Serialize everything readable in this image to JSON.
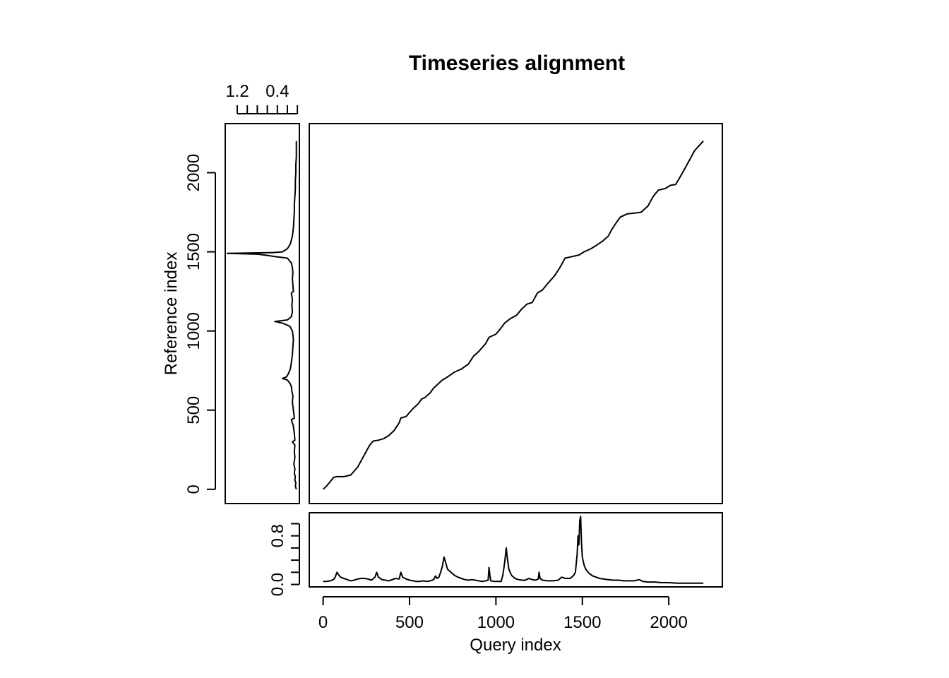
{
  "chart_data": {
    "type": "line",
    "title": "Timeseries alignment",
    "xlabel": "Query index",
    "ylabel": "Reference index",
    "panels": {
      "alignment": {
        "type": "line",
        "xlim": [
          -80,
          2310
        ],
        "ylim": [
          -90,
          2310
        ],
        "x_ticks": [
          0,
          500,
          1000,
          1500,
          2000
        ],
        "y_ticks": [
          0,
          500,
          1000,
          1500,
          2000
        ],
        "path": [
          [
            0,
            0
          ],
          [
            20,
            20
          ],
          [
            50,
            60
          ],
          [
            60,
            75
          ],
          [
            80,
            80
          ],
          [
            120,
            80
          ],
          [
            160,
            90
          ],
          [
            200,
            140
          ],
          [
            240,
            220
          ],
          [
            270,
            280
          ],
          [
            290,
            305
          ],
          [
            320,
            310
          ],
          [
            350,
            320
          ],
          [
            380,
            340
          ],
          [
            410,
            370
          ],
          [
            440,
            420
          ],
          [
            450,
            450
          ],
          [
            480,
            460
          ],
          [
            520,
            510
          ],
          [
            550,
            540
          ],
          [
            570,
            570
          ],
          [
            590,
            580
          ],
          [
            620,
            610
          ],
          [
            640,
            640
          ],
          [
            660,
            660
          ],
          [
            690,
            690
          ],
          [
            720,
            710
          ],
          [
            760,
            740
          ],
          [
            800,
            760
          ],
          [
            840,
            790
          ],
          [
            870,
            840
          ],
          [
            900,
            870
          ],
          [
            940,
            920
          ],
          [
            960,
            960
          ],
          [
            1000,
            980
          ],
          [
            1030,
            1020
          ],
          [
            1050,
            1050
          ],
          [
            1080,
            1075
          ],
          [
            1120,
            1100
          ],
          [
            1150,
            1140
          ],
          [
            1180,
            1170
          ],
          [
            1210,
            1180
          ],
          [
            1240,
            1240
          ],
          [
            1270,
            1260
          ],
          [
            1300,
            1300
          ],
          [
            1340,
            1350
          ],
          [
            1370,
            1400
          ],
          [
            1400,
            1460
          ],
          [
            1440,
            1470
          ],
          [
            1480,
            1480
          ],
          [
            1510,
            1500
          ],
          [
            1550,
            1520
          ],
          [
            1580,
            1540
          ],
          [
            1620,
            1570
          ],
          [
            1650,
            1600
          ],
          [
            1670,
            1640
          ],
          [
            1700,
            1690
          ],
          [
            1720,
            1720
          ],
          [
            1760,
            1740
          ],
          [
            1800,
            1745
          ],
          [
            1840,
            1750
          ],
          [
            1880,
            1790
          ],
          [
            1910,
            1850
          ],
          [
            1940,
            1890
          ],
          [
            1980,
            1900
          ],
          [
            2010,
            1920
          ],
          [
            2040,
            1925
          ],
          [
            2080,
            2000
          ],
          [
            2120,
            2080
          ],
          [
            2150,
            2140
          ],
          [
            2200,
            2200
          ]
        ]
      },
      "query": {
        "type": "line",
        "xlim": [
          -80,
          2310
        ],
        "ylim": [
          -0.04,
          1.18
        ],
        "y_ticks": [
          0.0,
          0.2,
          0.4,
          0.6,
          0.8,
          1.0
        ],
        "y_tick_labels": [
          "0.0",
          "0.8"
        ],
        "values": [
          [
            0,
            0.05
          ],
          [
            20,
            0.05
          ],
          [
            40,
            0.06
          ],
          [
            60,
            0.08
          ],
          [
            70,
            0.12
          ],
          [
            80,
            0.2
          ],
          [
            90,
            0.16
          ],
          [
            100,
            0.12
          ],
          [
            120,
            0.1
          ],
          [
            140,
            0.08
          ],
          [
            160,
            0.06
          ],
          [
            180,
            0.07
          ],
          [
            200,
            0.09
          ],
          [
            220,
            0.1
          ],
          [
            240,
            0.1
          ],
          [
            260,
            0.09
          ],
          [
            280,
            0.07
          ],
          [
            300,
            0.12
          ],
          [
            310,
            0.2
          ],
          [
            320,
            0.12
          ],
          [
            340,
            0.08
          ],
          [
            360,
            0.07
          ],
          [
            380,
            0.06
          ],
          [
            400,
            0.08
          ],
          [
            420,
            0.1
          ],
          [
            440,
            0.09
          ],
          [
            450,
            0.2
          ],
          [
            460,
            0.12
          ],
          [
            480,
            0.09
          ],
          [
            500,
            0.07
          ],
          [
            520,
            0.06
          ],
          [
            540,
            0.05
          ],
          [
            560,
            0.05
          ],
          [
            580,
            0.06
          ],
          [
            600,
            0.05
          ],
          [
            620,
            0.06
          ],
          [
            640,
            0.08
          ],
          [
            650,
            0.14
          ],
          [
            660,
            0.1
          ],
          [
            670,
            0.12
          ],
          [
            680,
            0.2
          ],
          [
            690,
            0.3
          ],
          [
            700,
            0.45
          ],
          [
            710,
            0.35
          ],
          [
            720,
            0.25
          ],
          [
            740,
            0.2
          ],
          [
            760,
            0.15
          ],
          [
            780,
            0.12
          ],
          [
            800,
            0.1
          ],
          [
            820,
            0.08
          ],
          [
            840,
            0.07
          ],
          [
            860,
            0.08
          ],
          [
            880,
            0.07
          ],
          [
            900,
            0.06
          ],
          [
            920,
            0.05
          ],
          [
            940,
            0.06
          ],
          [
            955,
            0.07
          ],
          [
            960,
            0.28
          ],
          [
            965,
            0.15
          ],
          [
            970,
            0.06
          ],
          [
            990,
            0.05
          ],
          [
            1010,
            0.05
          ],
          [
            1030,
            0.05
          ],
          [
            1040,
            0.15
          ],
          [
            1050,
            0.35
          ],
          [
            1060,
            0.6
          ],
          [
            1065,
            0.45
          ],
          [
            1075,
            0.25
          ],
          [
            1090,
            0.15
          ],
          [
            1110,
            0.1
          ],
          [
            1130,
            0.08
          ],
          [
            1150,
            0.07
          ],
          [
            1170,
            0.07
          ],
          [
            1190,
            0.1
          ],
          [
            1210,
            0.08
          ],
          [
            1230,
            0.07
          ],
          [
            1245,
            0.09
          ],
          [
            1250,
            0.2
          ],
          [
            1255,
            0.1
          ],
          [
            1270,
            0.07
          ],
          [
            1300,
            0.06
          ],
          [
            1330,
            0.06
          ],
          [
            1360,
            0.07
          ],
          [
            1380,
            0.12
          ],
          [
            1400,
            0.1
          ],
          [
            1430,
            0.1
          ],
          [
            1450,
            0.15
          ],
          [
            1460,
            0.2
          ],
          [
            1470,
            0.5
          ],
          [
            1475,
            0.8
          ],
          [
            1480,
            0.65
          ],
          [
            1485,
            1.05
          ],
          [
            1490,
            1.12
          ],
          [
            1495,
            0.7
          ],
          [
            1500,
            0.45
          ],
          [
            1510,
            0.32
          ],
          [
            1520,
            0.25
          ],
          [
            1540,
            0.18
          ],
          [
            1560,
            0.14
          ],
          [
            1580,
            0.12
          ],
          [
            1600,
            0.1
          ],
          [
            1620,
            0.09
          ],
          [
            1650,
            0.08
          ],
          [
            1680,
            0.07
          ],
          [
            1710,
            0.07
          ],
          [
            1740,
            0.06
          ],
          [
            1770,
            0.06
          ],
          [
            1800,
            0.06
          ],
          [
            1830,
            0.08
          ],
          [
            1850,
            0.05
          ],
          [
            1880,
            0.04
          ],
          [
            1920,
            0.04
          ],
          [
            1960,
            0.03
          ],
          [
            2000,
            0.03
          ],
          [
            2050,
            0.02
          ],
          [
            2100,
            0.02
          ],
          [
            2150,
            0.02
          ],
          [
            2200,
            0.02
          ]
        ]
      },
      "reference": {
        "type": "line",
        "orientation": "vertical, value axis reversed",
        "value_lim": [
          1.44,
          -0.04
        ],
        "value_ticks": [
          1.2,
          1.0,
          0.8,
          0.6,
          0.4,
          0.2,
          0.0
        ],
        "value_tick_labels": [
          "1.2",
          "0.4"
        ],
        "values": [
          [
            0,
            0.02
          ],
          [
            20,
            0.04
          ],
          [
            40,
            0.03
          ],
          [
            60,
            0.05
          ],
          [
            80,
            0.04
          ],
          [
            100,
            0.06
          ],
          [
            130,
            0.05
          ],
          [
            160,
            0.07
          ],
          [
            200,
            0.05
          ],
          [
            240,
            0.06
          ],
          [
            280,
            0.05
          ],
          [
            300,
            0.1
          ],
          [
            310,
            0.05
          ],
          [
            350,
            0.06
          ],
          [
            400,
            0.08
          ],
          [
            440,
            0.12
          ],
          [
            450,
            0.06
          ],
          [
            500,
            0.08
          ],
          [
            550,
            0.1
          ],
          [
            590,
            0.09
          ],
          [
            620,
            0.11
          ],
          [
            650,
            0.12
          ],
          [
            670,
            0.15
          ],
          [
            690,
            0.2
          ],
          [
            700,
            0.3
          ],
          [
            710,
            0.22
          ],
          [
            730,
            0.18
          ],
          [
            760,
            0.14
          ],
          [
            800,
            0.12
          ],
          [
            850,
            0.1
          ],
          [
            900,
            0.09
          ],
          [
            950,
            0.08
          ],
          [
            1000,
            0.1
          ],
          [
            1030,
            0.15
          ],
          [
            1050,
            0.3
          ],
          [
            1060,
            0.45
          ],
          [
            1070,
            0.2
          ],
          [
            1090,
            0.12
          ],
          [
            1120,
            0.1
          ],
          [
            1160,
            0.11
          ],
          [
            1200,
            0.1
          ],
          [
            1240,
            0.12
          ],
          [
            1250,
            0.08
          ],
          [
            1290,
            0.09
          ],
          [
            1330,
            0.1
          ],
          [
            1370,
            0.09
          ],
          [
            1400,
            0.1
          ],
          [
            1430,
            0.12
          ],
          [
            1460,
            0.2
          ],
          [
            1470,
            0.45
          ],
          [
            1480,
            0.65
          ],
          [
            1485,
            0.8
          ],
          [
            1490,
            1.4
          ],
          [
            1495,
            0.5
          ],
          [
            1500,
            0.3
          ],
          [
            1520,
            0.2
          ],
          [
            1550,
            0.14
          ],
          [
            1600,
            0.1
          ],
          [
            1650,
            0.08
          ],
          [
            1700,
            0.07
          ],
          [
            1750,
            0.06
          ],
          [
            1800,
            0.06
          ],
          [
            1850,
            0.05
          ],
          [
            1900,
            0.04
          ],
          [
            1950,
            0.04
          ],
          [
            2000,
            0.03
          ],
          [
            2050,
            0.03
          ],
          [
            2100,
            0.02
          ],
          [
            2150,
            0.02
          ],
          [
            2200,
            0.02
          ]
        ]
      }
    },
    "grid": false,
    "legend": "none"
  }
}
